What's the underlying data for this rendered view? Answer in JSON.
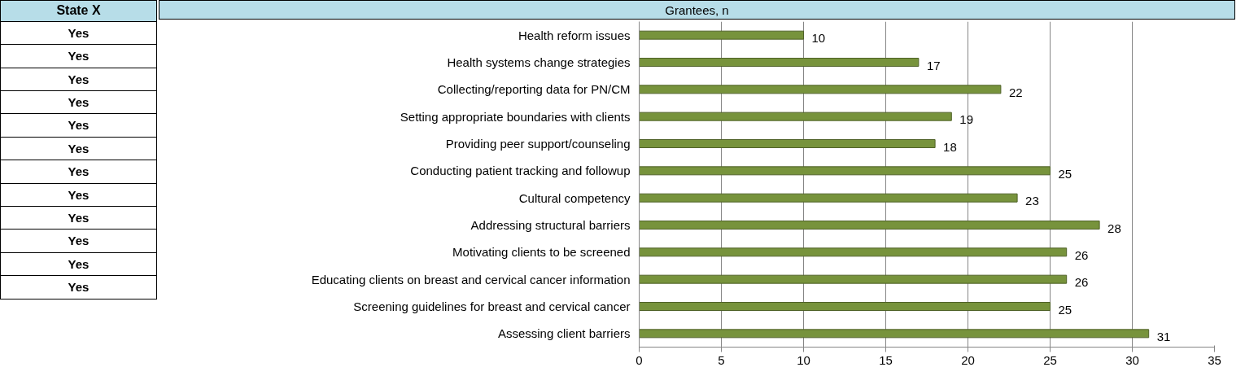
{
  "chart_data": {
    "type": "bar",
    "orientation": "horizontal",
    "xlabel": "Grantees, n",
    "categories": [
      "Health reform issues",
      "Health systems change strategies",
      "Collecting/reporting data for PN/CM",
      "Setting appropriate boundaries with clients",
      "Providing peer support/counseling",
      "Conducting patient tracking and followup",
      "Cultural competency",
      "Addressing structural barriers",
      "Motivating clients to be screened",
      "Educating clients on breast and cervical cancer information",
      "Screening guidelines for breast and cervical cancer",
      "Assessing client barriers"
    ],
    "values": [
      10,
      17,
      22,
      19,
      18,
      25,
      23,
      28,
      26,
      26,
      25,
      31
    ],
    "color": "#77933c",
    "xlim": [
      0,
      35
    ],
    "xticks": [
      0,
      5,
      10,
      15,
      20,
      25,
      30,
      35
    ],
    "grid": "x",
    "data_labels": true,
    "annotations": [
      "State X",
      "Yes",
      "Yes",
      "Yes",
      "Yes",
      "Yes",
      "Yes",
      "Yes",
      "Yes",
      "Yes",
      "Yes",
      "Yes",
      "Yes"
    ]
  }
}
